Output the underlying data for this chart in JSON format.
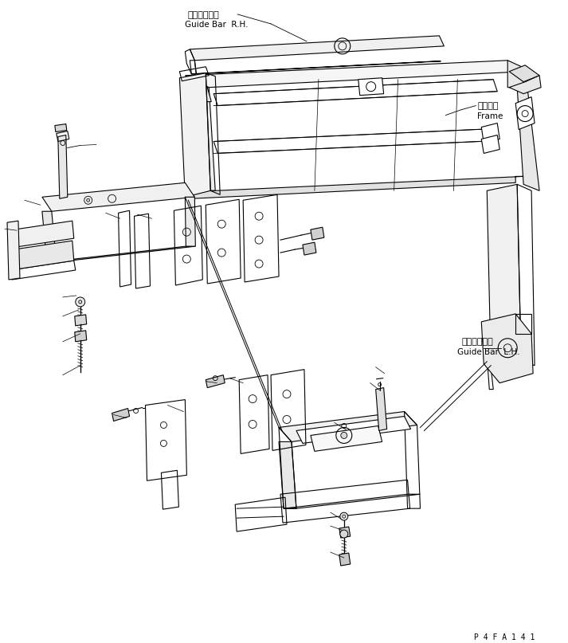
{
  "background_color": "#ffffff",
  "line_color": "#000000",
  "text_color": "#000000",
  "label_guide_bar_rh_jp": "ガイドバー右",
  "label_guide_bar_rh_en": "Guide Bar  R.H.",
  "label_frame_jp": "フレーム",
  "label_frame_en": "Frame",
  "label_guide_bar_lh_jp": "ガイドバー左",
  "label_guide_bar_lh_en": "Guide Bar  L.H.",
  "part_number": "P 4 F A 1 4 1",
  "fig_width": 7.13,
  "fig_height": 8.07,
  "dpi": 100
}
